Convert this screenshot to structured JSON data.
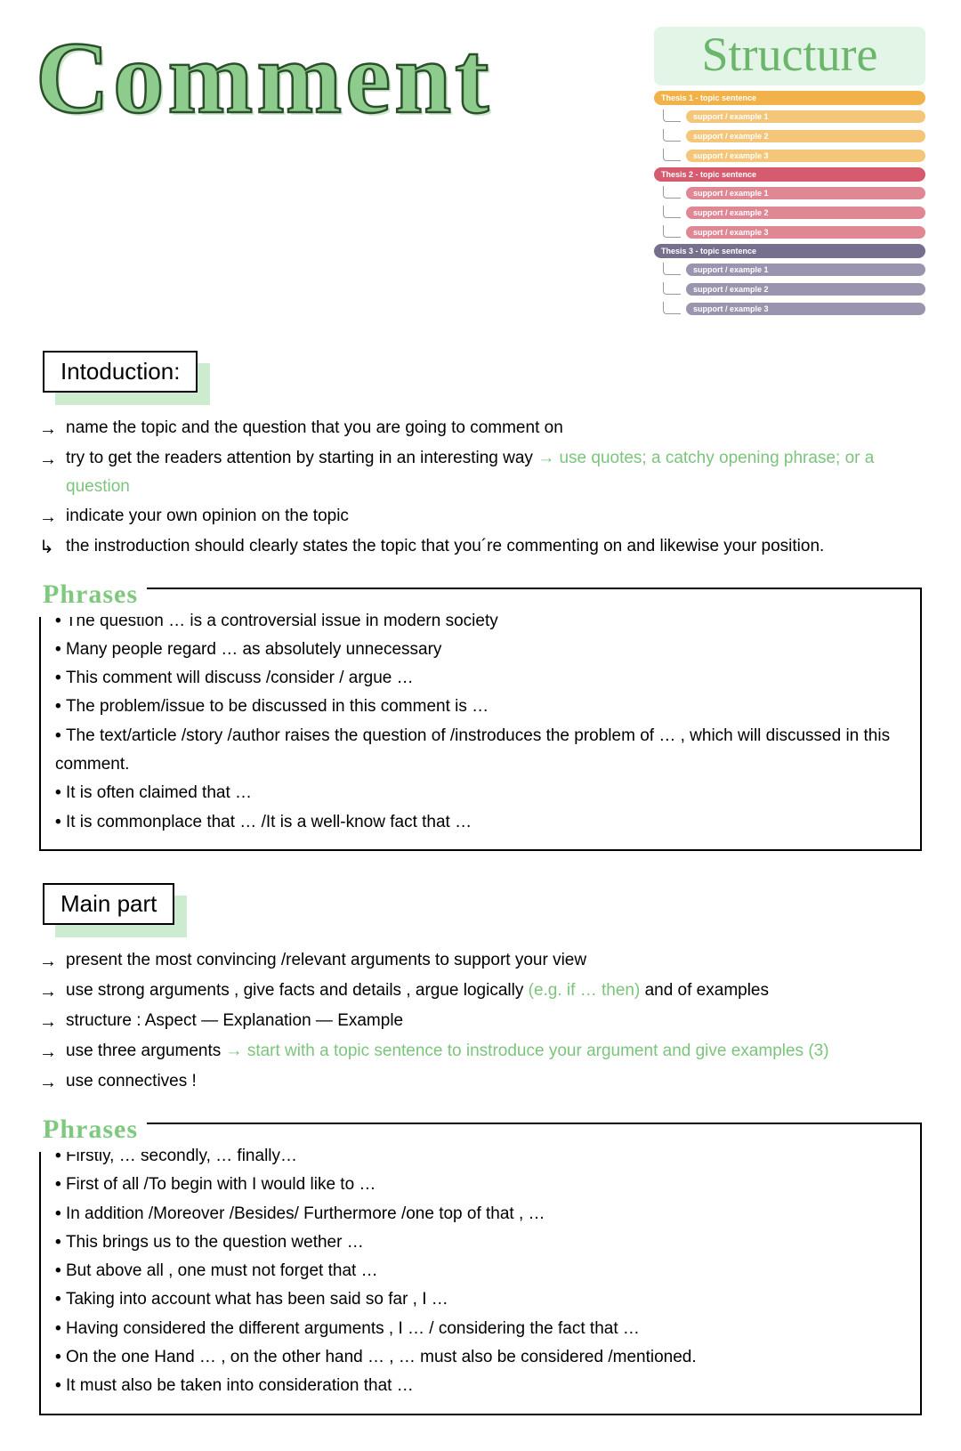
{
  "title": "Comment",
  "structure": {
    "heading": "Structure",
    "thesis_label_prefix": "Thesis ",
    "thesis_label_suffix": " - topic sentence",
    "support_label_prefix": "support / example ",
    "theses": [
      {
        "header_color": "#f1b24a",
        "support_color": "#f4c67a"
      },
      {
        "header_color": "#d65b6e",
        "support_color": "#df8793"
      },
      {
        "header_color": "#76708e",
        "support_color": "#9a94ae"
      }
    ],
    "supports_per_thesis": 3
  },
  "sections": {
    "introduction": {
      "heading": "Intoduction:",
      "bullets": [
        {
          "icon": "→",
          "text": "name the topic and the question that you are going to  comment on"
        },
        {
          "icon": "→",
          "text": "try to get the readers  attention by  starting in an interesting way ",
          "aside": "→ use quotes; a catchy opening phrase; or a question"
        },
        {
          "icon": "→",
          "text": "indicate your own  opinion on the topic"
        },
        {
          "icon": "↳",
          "text": "the instroduction should  clearly states the topic that you´re commenting on and likewise your position."
        }
      ],
      "phrases_label": "Phrases",
      "phrases": [
        "The question … is a controversial issue in modern  society",
        "Many people regard … as  absolutely unnecessary",
        "This comment will discuss /consider / argue …",
        "The problem/issue to be discussed in this comment is …",
        "The text/article /story /author raises the question of /instroduces the problem of … , which will discussed in this comment.",
        "It is often claimed that …",
        "It is commonplace that … /It is a well-know fact that …"
      ]
    },
    "mainpart": {
      "heading": "Main part",
      "bullets": [
        {
          "icon": "→",
          "text": "present the most convincing /relevant arguments to support your view"
        },
        {
          "icon": "→",
          "text": "use strong arguments , give facts and details , argue logically ",
          "aside": "(e.g. if … then) ",
          "tail": "and of examples"
        },
        {
          "icon": "→",
          "text": "structure : Aspect — Explanation — Example"
        },
        {
          "icon": "→",
          "text": "use three arguments ",
          "aside": "→ start with a topic sentence  to instroduce your argument and give  examples (3)"
        },
        {
          "icon": "→",
          "text": "use connectives !"
        }
      ],
      "phrases_label": "Phrases",
      "phrases": [
        "Firstly, … secondly, … finally…",
        "First of all  /To begin with I would like to …",
        "In addition /Moreover /Besides/ Furthermore /one top of that , …",
        "This brings us to the question wether …",
        "But above all , one must not forget that …",
        "Taking into  account what has been said so far , I …",
        "Having considered  the different arguments , I … / considering the fact that …",
        "On the one Hand … , on the other hand … , … must also be considered /mentioned.",
        "It must also be taken into consideration that …"
      ]
    }
  },
  "colors": {
    "accent_green": "#8dcc8d",
    "accent_green_light": "#cdebcf",
    "aside_green": "#7cc47c",
    "text": "#000000",
    "background": "#ffffff"
  }
}
